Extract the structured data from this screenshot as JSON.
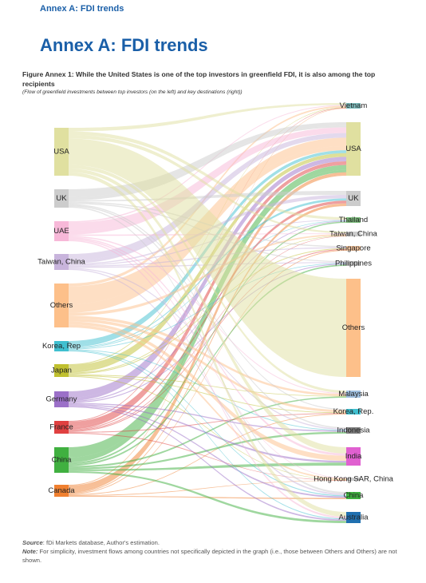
{
  "header": {
    "running_title": "Annex A: FDI trends",
    "title": "Annex A: FDI trends"
  },
  "figure": {
    "caption": "Figure Annex 1: While the United States is one of the top investors in greenfield FDI, it is also among the top recipients",
    "subtitle": "(Flow of greenfield investments between top investors (on the left) and key destinations (right))",
    "left_nodes": [
      "USA",
      "UK",
      "UAE",
      "Taiwan, China",
      "Others",
      "Korea, Rep",
      "Japan",
      "Germany",
      "France",
      "China",
      "Canada"
    ],
    "right_nodes": [
      "Vietnam",
      "USA",
      "UK",
      "Thailand",
      "Taiwan, China",
      "Singapore",
      "Philippines",
      "Others",
      "Malaysia",
      "Korea, Rep.",
      "Indonesia",
      "India",
      "Hong Kong SAR, China",
      "China",
      "Australia"
    ]
  },
  "footer": {
    "source_label": "Source",
    "source_text": ": fDi Markets database, Author's estimation.",
    "note_label": "Note:",
    "note_text": " For simplicity, investment flows among countries not specifically depicted in the graph (i.e., those between Others and Others) are not shown."
  }
}
